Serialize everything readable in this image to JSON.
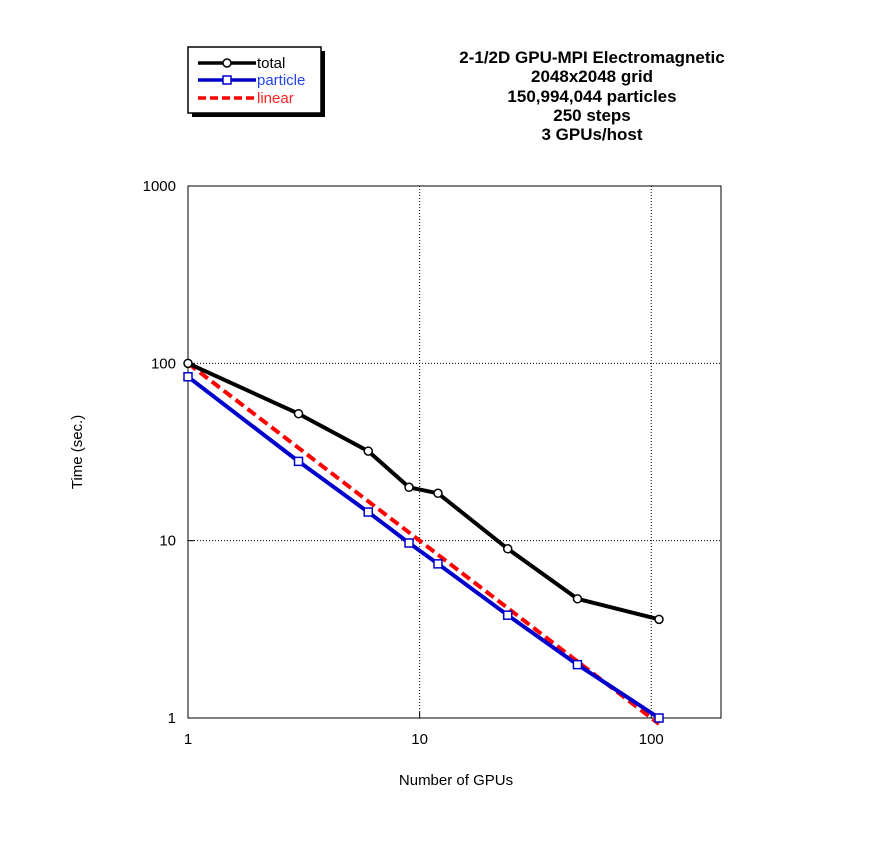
{
  "chart_data": {
    "type": "line",
    "title_lines": [
      "2-1/2D GPU-MPI Electromagnetic",
      "2048x2048 grid",
      "150,994,044 particles",
      "250 steps",
      "3 GPUs/host"
    ],
    "xlabel": "Number of GPUs",
    "ylabel": "Time (sec.)",
    "x_scale": "log",
    "y_scale": "log",
    "xlim": [
      1,
      200
    ],
    "ylim": [
      1,
      1000
    ],
    "x_ticks": [
      1,
      10,
      100
    ],
    "x_tick_labels": [
      "1",
      "10",
      "100"
    ],
    "y_ticks": [
      1,
      10,
      100,
      1000
    ],
    "y_tick_labels": [
      "1",
      "10",
      "100",
      "1000"
    ],
    "grid": "dotted",
    "legend_position": "top-left",
    "series": [
      {
        "name": "total",
        "color": "#000000",
        "line_style": "solid",
        "marker": "circle",
        "x": [
          1,
          3,
          6,
          9,
          12,
          24,
          48,
          108
        ],
        "y": [
          100,
          52,
          32,
          20,
          18.5,
          9,
          4.7,
          3.6
        ]
      },
      {
        "name": "particle",
        "color": "#0000cc",
        "line_style": "solid",
        "marker": "square",
        "x": [
          1,
          3,
          6,
          9,
          12,
          24,
          48,
          108
        ],
        "y": [
          84,
          28,
          14.5,
          9.7,
          7.4,
          3.8,
          2.0,
          1.0
        ]
      },
      {
        "name": "linear",
        "color": "#ff0000",
        "line_style": "dashed",
        "marker": "none",
        "x": [
          1,
          108
        ],
        "y": [
          100,
          0.926
        ]
      }
    ]
  }
}
